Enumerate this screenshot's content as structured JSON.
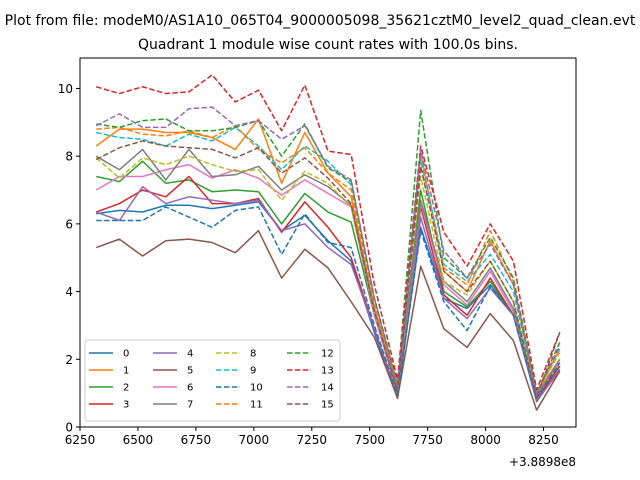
{
  "chart_data": {
    "type": "line",
    "suptitle": "Plot from file: modeM0/AS1A10_065T04_9000005098_35621cztM0_level2_quad_clean.evt",
    "title": "Quadrant 1 module wise count rates with 100.0s bins.",
    "xlabel": "",
    "ylabel": "",
    "offset_label": "+3.8898e8",
    "xlim": [
      6250,
      8390
    ],
    "ylim": [
      0,
      10.9
    ],
    "x_ticks": [
      6250,
      6500,
      6750,
      7000,
      7250,
      7500,
      7750,
      8000,
      8250
    ],
    "x_tick_labels": [
      "6250",
      "6500",
      "6750",
      "7000",
      "7250",
      "7500",
      "7750",
      "8000",
      "8250"
    ],
    "y_ticks": [
      0,
      2,
      4,
      6,
      8,
      10
    ],
    "y_tick_labels": [
      "0",
      "2",
      "4",
      "6",
      "8",
      "10"
    ],
    "grid": false,
    "legend": {
      "placement": "lower-left",
      "columns": 4
    },
    "x": [
      6320,
      6420,
      6520,
      6620,
      6720,
      6820,
      6920,
      7020,
      7120,
      7220,
      7320,
      7420,
      7520,
      7620,
      7720,
      7820,
      7920,
      8020,
      8120,
      8220,
      8320
    ],
    "series": [
      {
        "name": "0",
        "color": "#1f77b4",
        "dash": "solid",
        "values": [
          6.3,
          6.4,
          6.35,
          6.55,
          6.55,
          6.45,
          6.55,
          6.65,
          5.8,
          6.25,
          5.5,
          4.9,
          2.8,
          0.85,
          5.9,
          3.8,
          3.5,
          4.2,
          3.3,
          0.75,
          1.7
        ]
      },
      {
        "name": "1",
        "color": "#ff7f0e",
        "dash": "solid",
        "values": [
          8.3,
          8.8,
          8.8,
          8.7,
          8.7,
          8.55,
          8.2,
          9.1,
          7.2,
          8.7,
          7.5,
          6.8,
          3.5,
          1.2,
          8.1,
          4.6,
          4.0,
          5.5,
          4.2,
          1.0,
          2.0
        ]
      },
      {
        "name": "2",
        "color": "#2ca02c",
        "dash": "solid",
        "values": [
          7.4,
          7.25,
          7.85,
          7.2,
          7.3,
          6.95,
          7.0,
          6.95,
          6.0,
          6.9,
          6.35,
          6.05,
          3.3,
          1.1,
          7.0,
          4.0,
          3.55,
          4.3,
          3.3,
          0.85,
          1.8
        ]
      },
      {
        "name": "3",
        "color": "#d62728",
        "dash": "solid",
        "values": [
          6.35,
          6.6,
          7.0,
          6.8,
          7.4,
          6.6,
          6.6,
          6.75,
          5.75,
          6.65,
          5.9,
          5.0,
          2.9,
          0.9,
          6.5,
          3.9,
          3.3,
          4.4,
          3.3,
          0.8,
          1.8
        ]
      },
      {
        "name": "4",
        "color": "#9467bd",
        "dash": "solid",
        "values": [
          6.35,
          6.1,
          7.1,
          6.6,
          6.8,
          6.7,
          6.6,
          6.7,
          5.8,
          6.0,
          5.3,
          4.8,
          2.9,
          0.9,
          6.2,
          3.8,
          3.2,
          4.1,
          3.3,
          0.8,
          1.65
        ]
      },
      {
        "name": "5",
        "color": "#8c564b",
        "dash": "solid",
        "values": [
          5.3,
          5.55,
          5.05,
          5.5,
          5.55,
          5.45,
          5.15,
          5.8,
          4.4,
          5.25,
          4.7,
          3.7,
          2.65,
          0.85,
          4.75,
          2.9,
          2.35,
          3.35,
          2.55,
          0.5,
          1.65
        ]
      },
      {
        "name": "6",
        "color": "#e377c2",
        "dash": "solid",
        "values": [
          7.0,
          7.4,
          7.4,
          7.6,
          7.75,
          7.35,
          7.6,
          7.35,
          6.85,
          7.3,
          6.9,
          6.5,
          3.3,
          1.0,
          6.6,
          4.2,
          3.6,
          4.6,
          3.4,
          0.9,
          1.9
        ]
      },
      {
        "name": "7",
        "color": "#7f7f7f",
        "dash": "solid",
        "values": [
          8.0,
          7.6,
          8.2,
          7.3,
          8.2,
          7.4,
          7.45,
          7.7,
          7.0,
          7.45,
          7.1,
          6.55,
          3.5,
          1.0,
          6.7,
          4.3,
          3.7,
          4.7,
          3.5,
          0.9,
          2.0
        ]
      },
      {
        "name": "8",
        "color": "#bcbd22",
        "dash": "dashed",
        "values": [
          7.95,
          7.35,
          7.95,
          7.75,
          8.0,
          7.75,
          7.55,
          7.6,
          6.7,
          7.55,
          7.2,
          6.5,
          3.4,
          1.05,
          7.4,
          4.3,
          3.9,
          4.9,
          3.7,
          1.0,
          2.2
        ]
      },
      {
        "name": "9",
        "color": "#17becf",
        "dash": "dashed",
        "values": [
          8.7,
          8.55,
          8.5,
          8.3,
          8.65,
          8.45,
          8.85,
          8.3,
          7.6,
          8.3,
          7.85,
          7.15,
          3.8,
          1.2,
          7.9,
          4.8,
          4.3,
          5.1,
          4.0,
          1.0,
          2.3
        ]
      },
      {
        "name": "10",
        "color": "#1f77b4",
        "dash": "dashed",
        "values": [
          6.1,
          6.1,
          6.1,
          6.5,
          6.2,
          5.9,
          6.4,
          6.5,
          5.1,
          6.3,
          5.45,
          5.3,
          3.0,
          0.95,
          5.8,
          3.7,
          2.85,
          4.15,
          3.3,
          0.85,
          1.9
        ]
      },
      {
        "name": "11",
        "color": "#ff7f0e",
        "dash": "dashed",
        "values": [
          8.8,
          8.85,
          8.65,
          8.6,
          8.75,
          8.55,
          8.9,
          8.2,
          7.8,
          8.25,
          7.5,
          7.0,
          3.6,
          1.2,
          7.7,
          4.7,
          4.2,
          5.8,
          4.3,
          1.0,
          2.3
        ]
      },
      {
        "name": "12",
        "color": "#2ca02c",
        "dash": "dashed",
        "values": [
          8.95,
          8.85,
          9.05,
          9.1,
          8.75,
          8.75,
          8.85,
          9.05,
          8.0,
          8.95,
          7.65,
          7.25,
          3.8,
          1.3,
          9.35,
          5.0,
          4.4,
          5.6,
          4.4,
          1.0,
          2.5
        ]
      },
      {
        "name": "13",
        "color": "#d62728",
        "dash": "dashed",
        "values": [
          10.05,
          9.85,
          10.05,
          9.85,
          9.9,
          10.4,
          9.6,
          9.95,
          8.75,
          10.1,
          8.15,
          8.05,
          4.2,
          1.4,
          8.3,
          5.75,
          4.75,
          6.0,
          4.9,
          1.1,
          2.8
        ]
      },
      {
        "name": "14",
        "color": "#9467bd",
        "dash": "dashed",
        "values": [
          8.9,
          9.25,
          8.85,
          8.85,
          9.4,
          9.45,
          8.9,
          9.05,
          8.5,
          8.9,
          7.7,
          7.3,
          3.8,
          1.2,
          8.2,
          5.2,
          4.4,
          5.4,
          4.2,
          1.0,
          2.4
        ]
      },
      {
        "name": "15",
        "color": "#8c564b",
        "dash": "dashed",
        "values": [
          7.9,
          8.25,
          8.45,
          8.3,
          8.25,
          8.2,
          7.95,
          8.25,
          7.5,
          7.95,
          7.35,
          6.6,
          3.4,
          1.05,
          7.7,
          4.6,
          4.0,
          4.9,
          3.7,
          0.85,
          2.8
        ]
      }
    ]
  }
}
